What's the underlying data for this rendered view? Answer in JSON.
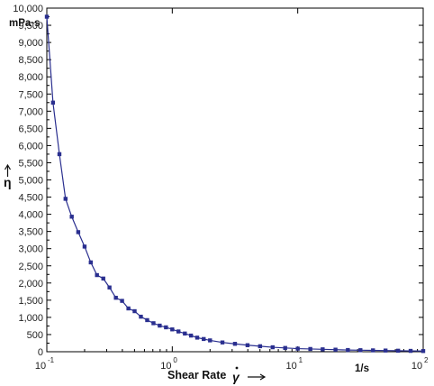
{
  "chart_data": {
    "type": "line",
    "title": "",
    "xlabel": "Shear Rate",
    "xsymbol": "γ",
    "xunit": "1/s",
    "ylabel": "η",
    "yunit": "mPa·s",
    "xscale": "log",
    "xlim": [
      0.1,
      100
    ],
    "ylim": [
      0,
      10000
    ],
    "grid": false,
    "legend": "none",
    "series_color": "#2a2f8f",
    "x_tick_labels": [
      {
        "base": "10",
        "exp": "-1"
      },
      {
        "base": "10",
        "exp": "0"
      },
      {
        "base": "10",
        "exp": "1"
      },
      {
        "base": "10",
        "exp": "2"
      }
    ],
    "y_tick_labels": [
      "0",
      "500",
      "1,000",
      "1,500",
      "2,000",
      "2,500",
      "3,000",
      "3,500",
      "4,000",
      "4,500",
      "5,000",
      "5,500",
      "6,000",
      "6,500",
      "7,000",
      "7,500",
      "8,000",
      "8,500",
      "9,000",
      "9,500",
      "10,000"
    ],
    "series": [
      {
        "x": [
          0.1,
          0.112,
          0.126,
          0.141,
          0.158,
          0.178,
          0.2,
          0.224,
          0.251,
          0.282,
          0.316,
          0.355,
          0.398,
          0.447,
          0.501,
          0.562,
          0.631,
          0.708,
          0.794,
          0.891,
          1.0,
          1.12,
          1.26,
          1.41,
          1.58,
          1.78,
          2.0,
          2.51,
          3.16,
          3.98,
          5.01,
          6.31,
          7.94,
          10.0,
          12.6,
          15.8,
          20.0,
          25.1,
          31.6,
          39.8,
          50.1,
          63.1,
          79.4,
          100
        ],
        "values": [
          9750,
          7250,
          5750,
          4450,
          3930,
          3480,
          3060,
          2600,
          2230,
          2130,
          1870,
          1570,
          1480,
          1260,
          1180,
          1020,
          920,
          830,
          760,
          710,
          650,
          590,
          530,
          470,
          410,
          370,
          330,
          270,
          230,
          190,
          160,
          130,
          110,
          90,
          80,
          70,
          60,
          50,
          45,
          40,
          35,
          30,
          25,
          20
        ]
      }
    ]
  }
}
